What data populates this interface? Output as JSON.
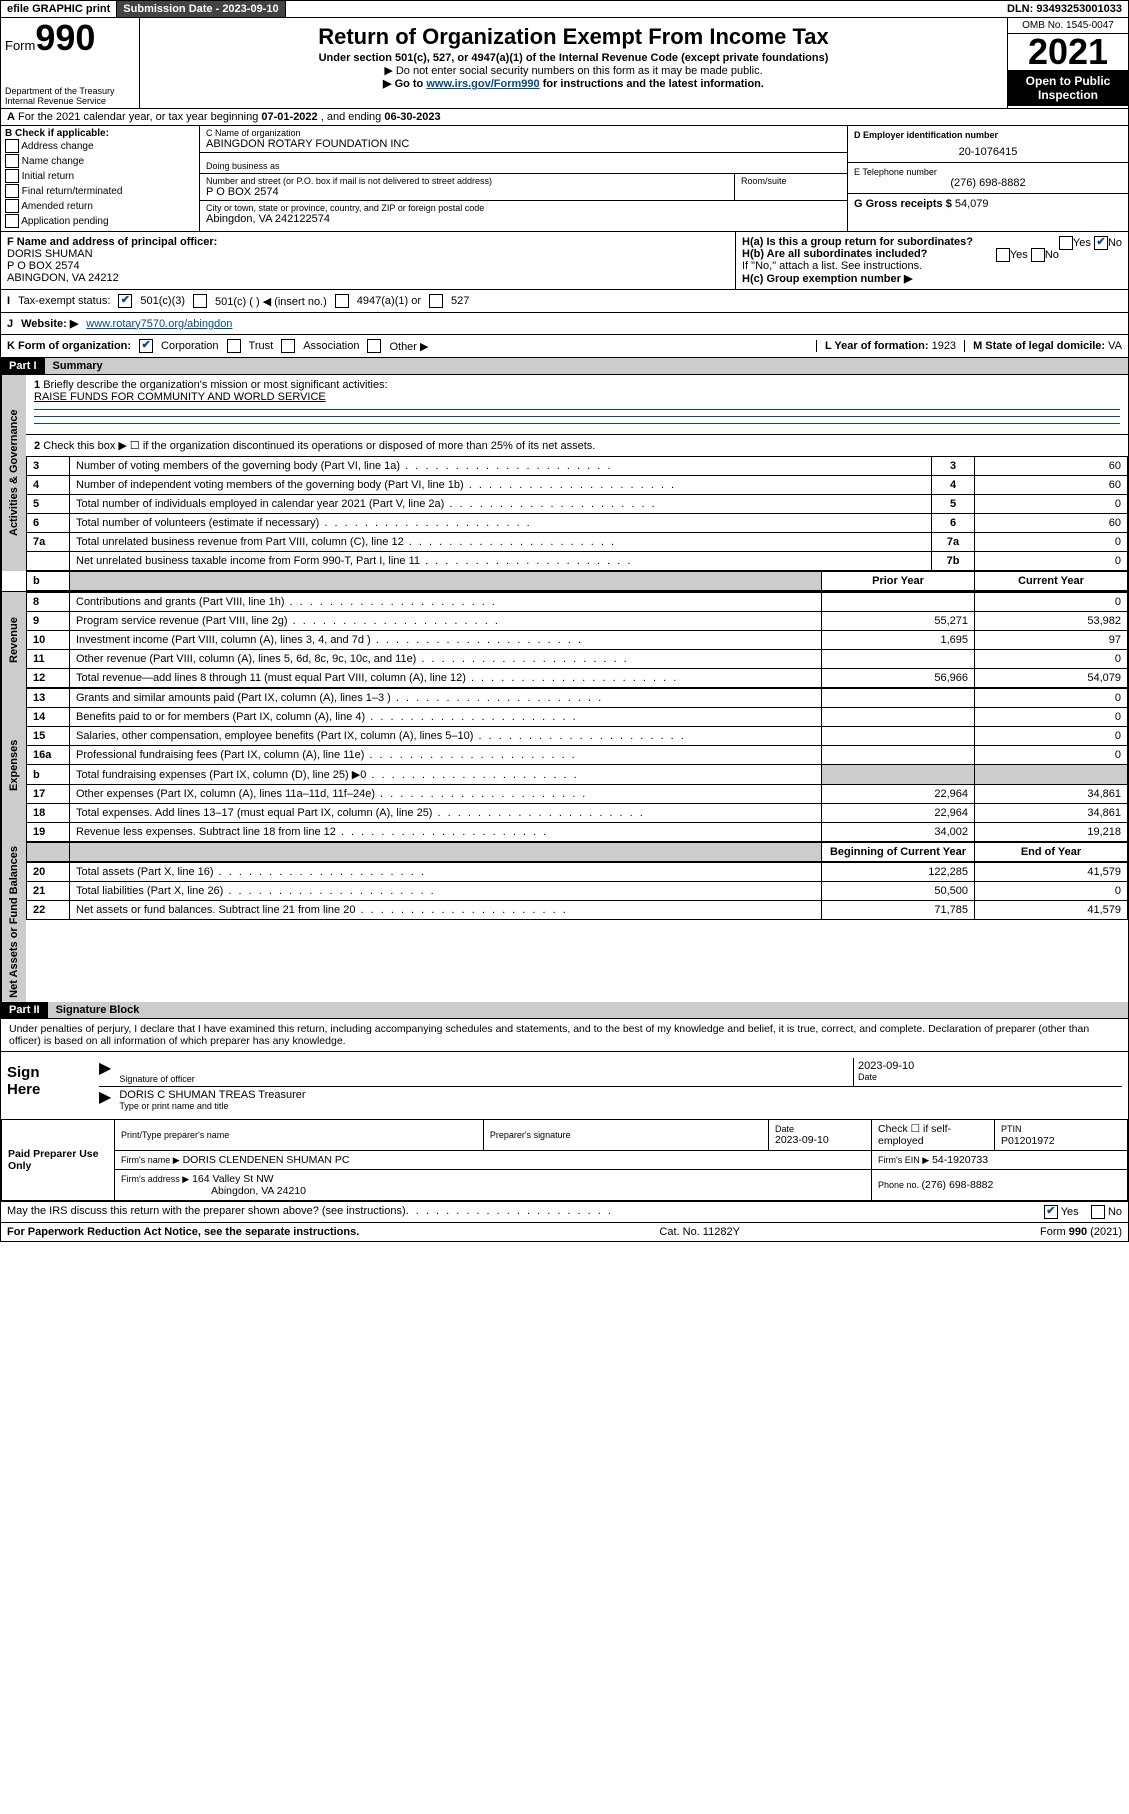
{
  "top_bar": {
    "efile": "efile GRAPHIC print",
    "submission_label": "Submission Date - 2023-09-10",
    "dln": "DLN: 93493253001033"
  },
  "header": {
    "form_word": "Form",
    "form_num": "990",
    "dept": "Department of the Treasury",
    "irs": "Internal Revenue Service",
    "title": "Return of Organization Exempt From Income Tax",
    "subtitle": "Under section 501(c), 527, or 4947(a)(1) of the Internal Revenue Code (except private foundations)",
    "note1": "▶ Do not enter social security numbers on this form as it may be made public.",
    "note2_prefix": "▶ Go to ",
    "note2_link": "www.irs.gov/Form990",
    "note2_suffix": " for instructions and the latest information.",
    "omb": "OMB No. 1545-0047",
    "year": "2021",
    "inspect": "Open to Public Inspection"
  },
  "row_a": {
    "label": "A",
    "text_prefix": "For the 2021 calendar year, or tax year beginning ",
    "begin": "07-01-2022",
    "mid": " , and ending ",
    "end": "06-30-2023"
  },
  "col_b": {
    "header": "B Check if applicable:",
    "items": [
      "Address change",
      "Name change",
      "Initial return",
      "Final return/terminated",
      "Amended return",
      "Application pending"
    ]
  },
  "col_c": {
    "name_label": "C Name of organization",
    "name": "ABINGDON ROTARY FOUNDATION INC",
    "dba_label": "Doing business as",
    "street_label": "Number and street (or P.O. box if mail is not delivered to street address)",
    "street": "P O BOX 2574",
    "room_label": "Room/suite",
    "city_label": "City or town, state or province, country, and ZIP or foreign postal code",
    "city": "Abingdon, VA  242122574"
  },
  "col_d": {
    "ein_label": "D Employer identification number",
    "ein": "20-1076415",
    "phone_label": "E Telephone number",
    "phone": "(276) 698-8882",
    "gross_label": "G Gross receipts $ ",
    "gross": "54,079"
  },
  "row_f": {
    "label": "F Name and address of principal officer:",
    "name": "DORIS SHUMAN",
    "addr1": "P O BOX 2574",
    "addr2": "ABINGDON, VA  24212"
  },
  "row_h": {
    "ha": "H(a)  Is this a group return for subordinates?",
    "hb": "H(b)  Are all subordinates included?",
    "hb_note": "If \"No,\" attach a list. See instructions.",
    "hc": "H(c)  Group exemption number ▶",
    "yes": "Yes",
    "no": "No"
  },
  "row_i": {
    "label": "I",
    "tax_status": "Tax-exempt status:",
    "opt1": "501(c)(3)",
    "opt2": "501(c) (   ) ◀ (insert no.)",
    "opt3": "4947(a)(1) or",
    "opt4": "527"
  },
  "row_j": {
    "label": "J",
    "website_label": "Website: ▶",
    "website": "www.rotary7570.org/abingdon"
  },
  "row_k": {
    "label": "K Form of organization:",
    "opts": [
      "Corporation",
      "Trust",
      "Association",
      "Other ▶"
    ],
    "l_label": "L Year of formation: ",
    "l_val": "1923",
    "m_label": "M State of legal domicile: ",
    "m_val": "VA"
  },
  "part1": {
    "header": "Part I",
    "title": "Summary",
    "line1_label": "1",
    "line1_text": "Briefly describe the organization's mission or most significant activities:",
    "line1_val": "RAISE FUNDS FOR COMMUNITY AND WORLD SERVICE",
    "line2_label": "2",
    "line2_text": "Check this box ▶ ☐  if the organization discontinued its operations or disposed of more than 25% of its net assets.",
    "governance_rows": [
      {
        "n": "3",
        "desc": "Number of voting members of the governing body (Part VI, line 1a)",
        "box": "3",
        "val": "60"
      },
      {
        "n": "4",
        "desc": "Number of independent voting members of the governing body (Part VI, line 1b)",
        "box": "4",
        "val": "60"
      },
      {
        "n": "5",
        "desc": "Total number of individuals employed in calendar year 2021 (Part V, line 2a)",
        "box": "5",
        "val": "0"
      },
      {
        "n": "6",
        "desc": "Total number of volunteers (estimate if necessary)",
        "box": "6",
        "val": "60"
      },
      {
        "n": "7a",
        "desc": "Total unrelated business revenue from Part VIII, column (C), line 12",
        "box": "7a",
        "val": "0"
      },
      {
        "n": "",
        "desc": "Net unrelated business taxable income from Form 990-T, Part I, line 11",
        "box": "7b",
        "val": "0"
      }
    ],
    "col_headers": {
      "b": "b",
      "prior": "Prior Year",
      "current": "Current Year"
    },
    "revenue_rows": [
      {
        "n": "8",
        "desc": "Contributions and grants (Part VIII, line 1h)",
        "prior": "",
        "cur": "0"
      },
      {
        "n": "9",
        "desc": "Program service revenue (Part VIII, line 2g)",
        "prior": "55,271",
        "cur": "53,982"
      },
      {
        "n": "10",
        "desc": "Investment income (Part VIII, column (A), lines 3, 4, and 7d )",
        "prior": "1,695",
        "cur": "97"
      },
      {
        "n": "11",
        "desc": "Other revenue (Part VIII, column (A), lines 5, 6d, 8c, 9c, 10c, and 11e)",
        "prior": "",
        "cur": "0"
      },
      {
        "n": "12",
        "desc": "Total revenue—add lines 8 through 11 (must equal Part VIII, column (A), line 12)",
        "prior": "56,966",
        "cur": "54,079"
      }
    ],
    "expense_rows": [
      {
        "n": "13",
        "desc": "Grants and similar amounts paid (Part IX, column (A), lines 1–3 )",
        "prior": "",
        "cur": "0"
      },
      {
        "n": "14",
        "desc": "Benefits paid to or for members (Part IX, column (A), line 4)",
        "prior": "",
        "cur": "0"
      },
      {
        "n": "15",
        "desc": "Salaries, other compensation, employee benefits (Part IX, column (A), lines 5–10)",
        "prior": "",
        "cur": "0"
      },
      {
        "n": "16a",
        "desc": "Professional fundraising fees (Part IX, column (A), line 11e)",
        "prior": "",
        "cur": "0"
      },
      {
        "n": "b",
        "desc": "Total fundraising expenses (Part IX, column (D), line 25) ▶0",
        "prior": "SHADE",
        "cur": "SHADE"
      },
      {
        "n": "17",
        "desc": "Other expenses (Part IX, column (A), lines 11a–11d, 11f–24e)",
        "prior": "22,964",
        "cur": "34,861"
      },
      {
        "n": "18",
        "desc": "Total expenses. Add lines 13–17 (must equal Part IX, column (A), line 25)",
        "prior": "22,964",
        "cur": "34,861"
      },
      {
        "n": "19",
        "desc": "Revenue less expenses. Subtract line 18 from line 12",
        "prior": "34,002",
        "cur": "19,218"
      }
    ],
    "net_headers": {
      "begin": "Beginning of Current Year",
      "end": "End of Year"
    },
    "net_rows": [
      {
        "n": "20",
        "desc": "Total assets (Part X, line 16)",
        "prior": "122,285",
        "cur": "41,579"
      },
      {
        "n": "21",
        "desc": "Total liabilities (Part X, line 26)",
        "prior": "50,500",
        "cur": "0"
      },
      {
        "n": "22",
        "desc": "Net assets or fund balances. Subtract line 21 from line 20",
        "prior": "71,785",
        "cur": "41,579"
      }
    ],
    "vert_labels": {
      "gov": "Activities & Governance",
      "rev": "Revenue",
      "exp": "Expenses",
      "net": "Net Assets or Fund Balances"
    }
  },
  "part2": {
    "header": "Part II",
    "title": "Signature Block",
    "declaration": "Under penalties of perjury, I declare that I have examined this return, including accompanying schedules and statements, and to the best of my knowledge and belief, it is true, correct, and complete. Declaration of preparer (other than officer) is based on all information of which preparer has any knowledge.",
    "sign_here": "Sign Here",
    "sig_officer_label": "Signature of officer",
    "sig_date": "2023-09-10",
    "date_label": "Date",
    "officer_name": "DORIS C SHUMAN TREAS Treasurer",
    "officer_name_label": "Type or print name and title",
    "paid_label": "Paid Preparer Use Only",
    "prep_name_label": "Print/Type preparer's name",
    "prep_sig_label": "Preparer's signature",
    "prep_date_label": "Date",
    "prep_date": "2023-09-10",
    "check_if": "Check ☐ if self-employed",
    "ptin_label": "PTIN",
    "ptin": "P01201972",
    "firm_name_label": "Firm's name    ▶",
    "firm_name": "DORIS CLENDENEN SHUMAN PC",
    "firm_ein_label": "Firm's EIN ▶",
    "firm_ein": "54-1920733",
    "firm_addr_label": "Firm's address ▶",
    "firm_addr1": "164 Valley St NW",
    "firm_addr2": "Abingdon, VA  24210",
    "firm_phone_label": "Phone no. ",
    "firm_phone": "(276) 698-8882",
    "discuss": "May the IRS discuss this return with the preparer shown above? (see instructions)",
    "yes": "Yes",
    "no": "No"
  },
  "footer": {
    "paperwork": "For Paperwork Reduction Act Notice, see the separate instructions.",
    "cat": "Cat. No. 11282Y",
    "form": "Form 990 (2021)"
  }
}
